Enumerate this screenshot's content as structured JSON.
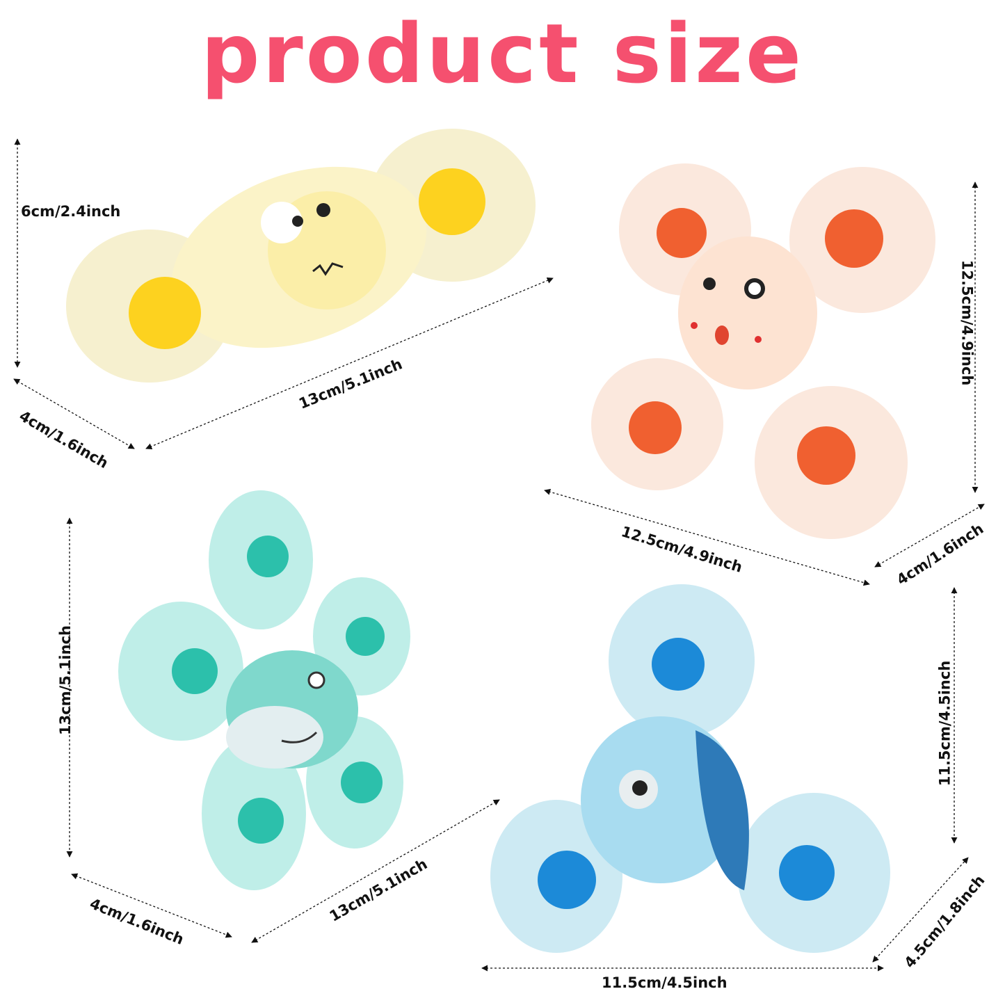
{
  "title": "product size",
  "title_color": "#f5506f",
  "products": [
    {
      "name": "yellow crab spinner",
      "body_color": "#fbf3c8",
      "cup_color": "#fdd21f",
      "height": "6cm/2.4inch",
      "length": "13cm/5.1inch",
      "depth": "4cm/1.6inch"
    },
    {
      "name": "peach octopus spinner",
      "body_color": "#fde3d2",
      "cup_color": "#f06030",
      "height": "12.5cm/4.9inch",
      "width": "12.5cm/4.9inch",
      "depth": "4cm/1.6inch"
    },
    {
      "name": "teal shark spinner",
      "body_color": "#bfeee8",
      "cup_color": "#2cc0ab",
      "height": "13cm/5.1inch",
      "depth": "4cm/1.6inch",
      "width": "13cm/5.1inch"
    },
    {
      "name": "blue fish spinner",
      "body_color": "#a8dcf0",
      "cup_color": "#1c8ad8",
      "height": "11.5cm/4.5inch",
      "depth": "4.5cm/1.8inch",
      "width": "11.5cm/4.5inch"
    }
  ]
}
